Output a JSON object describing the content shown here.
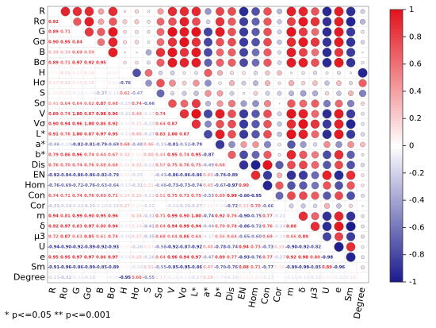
{
  "chart_data": {
    "type": "correlation-matrix",
    "variables": [
      "R",
      "Rσ",
      "G",
      "Gσ",
      "B",
      "Bσ",
      "H",
      "Hσ",
      "S",
      "Sσ",
      "V",
      "Vσ",
      "L*",
      "a*",
      "b*",
      "Dis",
      "EN",
      "Hom",
      "Con",
      "Cor",
      "m",
      "δ",
      "μ3",
      "U",
      "e",
      "Sm",
      "Degree"
    ],
    "values": [
      [],
      [
        0.92
      ],
      [
        0.89,
        0.71
      ],
      [
        0.9,
        0.95,
        0.84
      ],
      [
        0.39,
        0.39,
        0.69,
        0.59
      ],
      [
        0.89,
        0.71,
        0.97,
        0.92,
        0.95
      ],
      [
        0.05,
        0.21,
        0.12,
        0.16,
        0.03,
        0.1
      ],
      [
        0.17,
        0.23,
        0.14,
        0.18,
        0.02,
        0.11,
        -0.76
      ],
      [
        0.08,
        0.13,
        -0.11,
        -0.08,
        -0.37,
        -0.14,
        0.62,
        -0.47
      ],
      [
        0.41,
        0.64,
        0.64,
        0.62,
        0.87,
        0.68,
        -0.19,
        0.74,
        -0.66
      ],
      [
        0.89,
        0.74,
        1.0,
        0.87,
        0.98,
        0.96,
        -0.21,
        0.49,
        -0.17,
        0.74
      ],
      [
        0.9,
        0.94,
        0.96,
        1.0,
        0.86,
        0.92,
        -0.1,
        0.21,
        -0.23,
        0.64,
        0.87
      ],
      [
        0.91,
        0.76,
        1.0,
        0.87,
        0.97,
        0.95,
        -0.13,
        0.45,
        -0.27,
        0.83,
        1.0,
        0.87
      ],
      [
        -0.46,
        -0.19,
        -0.82,
        -0.81,
        -0.79,
        -0.69,
        0.68,
        -0.48,
        0.46,
        -0.31,
        -0.81,
        -0.52,
        -0.79
      ],
      [
        0.79,
        0.86,
        0.96,
        0.74,
        0.64,
        0.67,
        0.32,
        0.11,
        0.4,
        0.44,
        0.95,
        0.74,
        0.95,
        -0.87
      ],
      [
        0.76,
        0.7,
        0.74,
        0.76,
        0.68,
        0.68,
        0.16,
        0.32,
        -0.21,
        0.57,
        0.75,
        0.76,
        0.75,
        -0.49,
        0.68
      ],
      [
        -0.92,
        -0.84,
        -0.86,
        -0.86,
        -0.82,
        -0.79,
        0.12,
        -0.21,
        0.05,
        -0.43,
        -0.86,
        -0.86,
        -0.86,
        0.43,
        -0.78,
        -0.89
      ],
      [
        -0.76,
        -0.69,
        -0.72,
        -0.76,
        -0.63,
        -0.64,
        -0.17,
        -0.31,
        0.21,
        -0.48,
        -0.73,
        -0.73,
        -0.74,
        0.45,
        -0.67,
        -0.97,
        0.9
      ],
      [
        0.74,
        0.71,
        0.74,
        0.76,
        0.69,
        0.71,
        0.24,
        0.31,
        -0.21,
        0.51,
        0.75,
        0.73,
        0.75,
        -0.53,
        0.69,
        0.99,
        -0.86,
        -0.95
      ],
      [
        -0.31,
        -0.24,
        -0.21,
        -0.26,
        -0.16,
        -0.19,
        0.27,
        0.1,
        -0.21,
        0.01,
        -0.21,
        -0.26,
        -0.27,
        0.12,
        -0.1,
        -0.72,
        0.33,
        0.7,
        -0.66
      ],
      [
        0.94,
        0.81,
        0.99,
        0.9,
        0.95,
        0.96,
        -0.05,
        0.34,
        -0.31,
        0.71,
        0.99,
        0.9,
        1.0,
        -0.74,
        0.92,
        0.76,
        -0.9,
        -0.75,
        0.77,
        -0.21
      ],
      [
        0.92,
        0.97,
        0.83,
        0.97,
        0.8,
        0.94,
        -0.11,
        0.18,
        -0.41,
        0.64,
        0.94,
        0.99,
        0.94,
        -0.44,
        0.7,
        0.78,
        -0.86,
        -0.72,
        0.76,
        -0.24,
        0.88
      ],
      [
        0.72,
        0.87,
        0.63,
        0.85,
        0.61,
        0.74,
        -0.16,
        0.27,
        -0.35,
        0.68,
        0.64,
        0.86,
        0.64,
        -0.17,
        0.56,
        0.64,
        -0.65,
        -0.6,
        0.69,
        -0.18,
        0.66,
        0.89
      ],
      [
        -0.94,
        -0.9,
        -0.92,
        -0.89,
        -0.92,
        -0.93,
        0.08,
        -0.26,
        0.17,
        -0.58,
        -0.92,
        -0.87,
        -0.92,
        0.48,
        -0.78,
        -0.74,
        0.94,
        0.73,
        -0.73,
        0.33,
        -0.9,
        -0.92,
        -0.82
      ],
      [
        0.95,
        0.95,
        0.97,
        0.97,
        0.86,
        0.97,
        -0.14,
        0.28,
        -0.26,
        0.64,
        0.96,
        0.94,
        0.97,
        -0.47,
        0.89,
        0.77,
        -0.93,
        -0.76,
        0.77,
        -0.27,
        0.92,
        0.98,
        0.8,
        -0.98
      ],
      [
        -0.91,
        -0.96,
        -0.86,
        -0.89,
        -0.85,
        -0.89,
        0.05,
        -0.16,
        0.31,
        -0.55,
        -0.85,
        -0.95,
        -0.86,
        0.47,
        -0.7,
        -0.76,
        0.88,
        0.71,
        -0.77,
        0.16,
        -0.89,
        -0.99,
        -0.85,
        0.89,
        -0.96
      ],
      [
        -0.21,
        -0.32,
        -0.12,
        -0.18,
        -0.02,
        -0.09,
        -0.95,
        0.68,
        -0.55,
        0.17,
        -0.11,
        -0.11,
        -0.17,
        0.28,
        -0.09,
        -0.16,
        0.11,
        0.1,
        -0.13,
        -0.03,
        -0.11,
        -0.12,
        -0.15,
        0.09,
        -0.12,
        0.14
      ]
    ],
    "value_labels": [
      [],
      [
        "0.92"
      ],
      [
        "0.89",
        "0.71"
      ],
      [
        "0.90",
        "0.95",
        "0.84"
      ],
      [
        "0.39",
        "0.39",
        "0.69",
        "0.59"
      ],
      [
        "0.89",
        "0.71",
        "0.97",
        "0.92",
        "0.95"
      ],
      [
        "0.05",
        "0.21",
        "0.12",
        "0.16",
        "0.03",
        "0.10"
      ],
      [
        "0.17",
        "0.23",
        "0.14",
        "0.18",
        "0.02",
        "0.11",
        "-0.76"
      ],
      [
        "0.08",
        "0.13",
        "-0.11",
        "-0.08",
        "-0.37",
        "-0.14",
        "0.62",
        "-0.47"
      ],
      [
        "0.41",
        "0.64",
        "0.64",
        "0.62",
        "0.87",
        "0.68",
        "-0.19",
        "0.74",
        "-0.66"
      ],
      [
        "0.89",
        "0.74",
        "1.00",
        "0.87",
        "0.98",
        "0.96",
        "-0.21",
        "0.49",
        "-0.17",
        "0.74"
      ],
      [
        "0.90",
        "0.94",
        "0.96",
        "1.00",
        "0.86",
        "0.92",
        "-0.10",
        "0.21",
        "-0.23",
        "0.64",
        "0.87"
      ],
      [
        "0.91",
        "0.76",
        "1.00",
        "0.87",
        "0.97",
        "0.95",
        "-0.13",
        "0.45",
        "-0.27",
        "0.83",
        "1.00",
        "0.87"
      ],
      [
        "-0.46",
        "-0.19",
        "-0.82",
        "-0.81",
        "-0.79",
        "-0.69",
        "0.68",
        "-0.48",
        "0.46",
        "-0.31",
        "-0.81",
        "-0.52",
        "-0.79"
      ],
      [
        "0.79",
        "0.86",
        "0.96",
        "0.74",
        "0.64",
        "0.67",
        "0.32",
        "0.11",
        "0.40",
        "0.44",
        "0.95",
        "0.74",
        "0.95",
        "-0.87"
      ],
      [
        "0.76",
        "0.70",
        "0.74",
        "0.76",
        "0.68",
        "0.68",
        "0.16",
        "0.32",
        "-0.21",
        "0.57",
        "0.75",
        "0.76",
        "0.75",
        "-0.49",
        "0.68"
      ],
      [
        "-0.92",
        "-0.84",
        "-0.86",
        "-0.86",
        "-0.82",
        "-0.79",
        "0.12",
        "-0.21",
        "0.05",
        "-0.43",
        "-0.86",
        "-0.86",
        "-0.86",
        "0.43",
        "-0.78",
        "-0.89"
      ],
      [
        "-0.76",
        "-0.69",
        "-0.72",
        "-0.76",
        "-0.63",
        "-0.64",
        "-0.17",
        "-0.31",
        "0.21",
        "-0.48",
        "-0.73",
        "-0.73",
        "-0.74",
        "0.45",
        "-0.67",
        "-0.97",
        "0.90"
      ],
      [
        "0.74",
        "0.71",
        "0.74",
        "0.76",
        "0.69",
        "0.71",
        "0.24",
        "0.31",
        "-0.21",
        "0.51",
        "0.75",
        "0.73",
        "0.75",
        "-0.53",
        "0.69",
        "0.99",
        "-0.86",
        "-0.95"
      ],
      [
        "-0.31",
        "-0.24",
        "-0.21",
        "-0.26",
        "-0.16",
        "-0.19",
        "0.27",
        "0.10",
        "-0.21",
        "0.01",
        "-0.21",
        "-0.26",
        "-0.27",
        "0.12",
        "-0.10",
        "-0.72",
        "0.33",
        "0.70",
        "-0.66"
      ],
      [
        "0.94",
        "0.81",
        "0.99",
        "0.90",
        "0.95",
        "0.96",
        "-0.05",
        "0.34",
        "-0.31",
        "0.71",
        "0.99",
        "0.90",
        "1.00",
        "-0.74",
        "0.92",
        "0.76",
        "-0.90",
        "-0.75",
        "0.77",
        "-0.21"
      ],
      [
        "0.92",
        "0.97",
        "0.83",
        "0.97",
        "0.80",
        "0.94",
        "-0.11",
        "0.18",
        "-0.41",
        "0.64",
        "0.94",
        "0.99",
        "0.94",
        "-0.44",
        "0.70",
        "0.78",
        "-0.86",
        "-0.72",
        "0.76",
        "-0.24",
        "0.88"
      ],
      [
        "0.72",
        "0.87",
        "0.63",
        "0.85",
        "0.61",
        "0.74",
        "-0.16",
        "0.27",
        "-0.35",
        "0.68",
        "0.64",
        "0.86",
        "0.64",
        "-0.17",
        "0.56",
        "0.64",
        "-0.65",
        "-0.60",
        "0.69",
        "-0.18",
        "0.66",
        "0.89"
      ],
      [
        "-0.94",
        "-0.90",
        "-0.92",
        "-0.89",
        "-0.92",
        "-0.93",
        "0.08",
        "-0.26",
        "0.17",
        "-0.58",
        "-0.92",
        "-0.87",
        "-0.92",
        "0.48",
        "-0.78",
        "-0.74",
        "0.94",
        "0.73",
        "-0.73",
        "0.33",
        "-0.90",
        "-0.92",
        "-0.82"
      ],
      [
        "0.95",
        "0.95",
        "0.97",
        "0.97",
        "0.86",
        "0.97",
        "-0.14",
        "0.28",
        "-0.26",
        "0.64",
        "0.96",
        "0.94",
        "0.97",
        "-0.47",
        "0.89",
        "0.77",
        "-0.93",
        "-0.76",
        "0.77",
        "-0.27",
        "0.92",
        "0.98",
        "0.80",
        "-0.98"
      ],
      [
        "-0.91",
        "-0.96",
        "-0.86",
        "-0.89",
        "-0.85",
        "-0.89",
        "0.05",
        "-0.16",
        "0.31",
        "-0.55",
        "-0.85",
        "-0.95",
        "-0.86",
        "0.47",
        "-0.70",
        "-0.76",
        "0.88",
        "0.71",
        "-0.77",
        "0.16",
        "-0.89",
        "-0.99",
        "-0.85",
        "0.89",
        "-0.96"
      ],
      [
        "-0.21",
        "-0.32",
        "-0.12",
        "-0.18",
        "-0.02",
        "-0.09",
        "-0.95",
        "0.68",
        "-0.55",
        "0.17",
        "-0.11",
        "-0.11",
        "-0.17",
        "0.28",
        "-0.09",
        "-0.16",
        "0.11",
        "0.10",
        "-0.13",
        "-0.03",
        "-0.11",
        "-0.12",
        "-0.15",
        "0.09",
        "-0.12",
        "0.14"
      ]
    ],
    "colorbar_lim": [
      -1,
      1
    ],
    "colorbar_ticks": [
      1,
      0.8,
      0.6,
      0.4,
      0.2,
      0,
      -0.2,
      -0.4,
      -0.6,
      -0.8,
      -1
    ],
    "colormap": [
      "#1a1a8e",
      "#ffffff",
      "#e3121b"
    ],
    "footnote": "* p<=0.05 ** p<=0.001"
  }
}
